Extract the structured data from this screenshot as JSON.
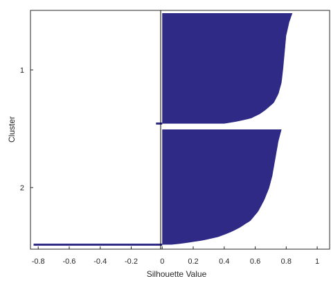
{
  "chart_data": {
    "type": "bar",
    "orientation": "horizontal",
    "title": "",
    "xlabel": "Silhouette Value",
    "ylabel": "Cluster",
    "xlim": [
      -0.85,
      1.08
    ],
    "xticks": [
      -0.8,
      -0.6,
      -0.4,
      -0.2,
      0,
      0.2,
      0.4,
      0.6,
      0.8,
      1
    ],
    "xtick_labels": [
      "-0.8",
      "-0.6",
      "-0.4",
      "-0.2",
      "0",
      "0.2",
      "0.4",
      "0.6",
      "0.8",
      "1"
    ],
    "grid": false,
    "legend": "none",
    "color": "#2e2a86",
    "clusters": [
      {
        "label": "1",
        "profile": [
          [
            0,
            0.84
          ],
          [
            0.08,
            0.82
          ],
          [
            0.2,
            0.8
          ],
          [
            0.35,
            0.79
          ],
          [
            0.5,
            0.78
          ],
          [
            0.62,
            0.77
          ],
          [
            0.72,
            0.75
          ],
          [
            0.8,
            0.72
          ],
          [
            0.86,
            0.67
          ],
          [
            0.9,
            0.63
          ],
          [
            0.94,
            0.57
          ],
          [
            0.97,
            0.47
          ],
          [
            0.985,
            0.4
          ]
        ],
        "negative_tail": -0.04
      },
      {
        "label": "2",
        "profile": [
          [
            0,
            0.77
          ],
          [
            0.1,
            0.75
          ],
          [
            0.25,
            0.73
          ],
          [
            0.4,
            0.71
          ],
          [
            0.5,
            0.69
          ],
          [
            0.6,
            0.66
          ],
          [
            0.7,
            0.62
          ],
          [
            0.78,
            0.57
          ],
          [
            0.84,
            0.5
          ],
          [
            0.88,
            0.44
          ],
          [
            0.92,
            0.36
          ],
          [
            0.95,
            0.26
          ],
          [
            0.975,
            0.13
          ],
          [
            0.985,
            0.06
          ]
        ],
        "negative_tail": -0.83
      }
    ]
  }
}
